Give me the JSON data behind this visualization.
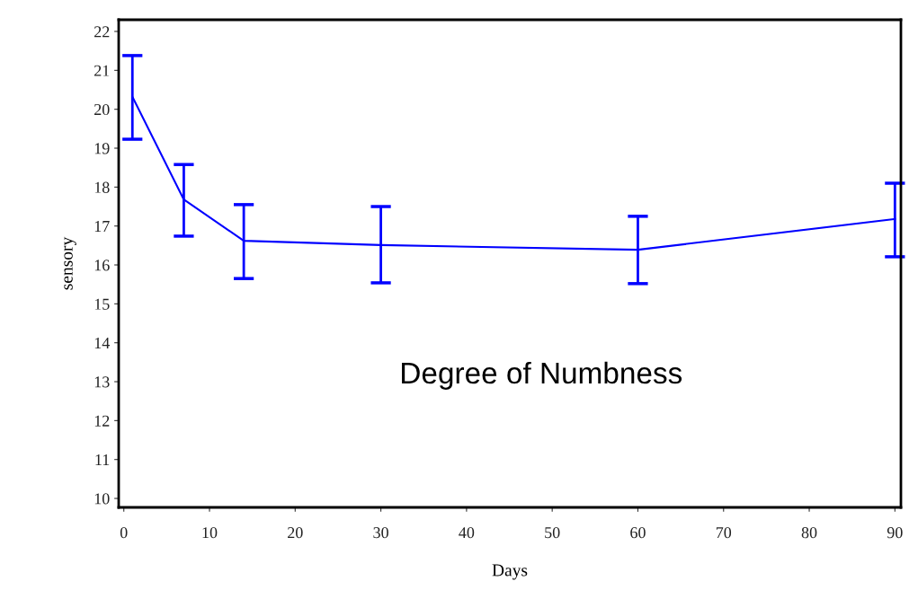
{
  "chart_data": {
    "type": "line",
    "xlabel": "Days",
    "ylabel": "sensory",
    "x": [
      1,
      7,
      14,
      30,
      60,
      90
    ],
    "series": [
      {
        "color": "#0000ff",
        "values": [
          20.32,
          17.68,
          16.62,
          16.51,
          16.39,
          17.18
        ],
        "errors": [
          [
            19.23,
            21.38
          ],
          [
            16.74,
            18.58
          ],
          [
            15.65,
            17.55
          ],
          [
            15.54,
            17.5
          ],
          [
            15.52,
            17.25
          ],
          [
            16.21,
            18.1
          ]
        ]
      }
    ],
    "xlim": [
      -0.6,
      90.7
    ],
    "ylim": [
      9.77,
      22.3
    ],
    "xticks": [
      0,
      10,
      20,
      30,
      40,
      50,
      60,
      70,
      80,
      90
    ],
    "yticks": [
      10,
      11,
      12,
      13,
      14,
      15,
      16,
      17,
      18,
      19,
      20,
      21,
      22
    ],
    "annotations": [
      "Degree of Numbness"
    ],
    "grid": false,
    "legend": false,
    "marker": "none",
    "line_style": "solid"
  }
}
